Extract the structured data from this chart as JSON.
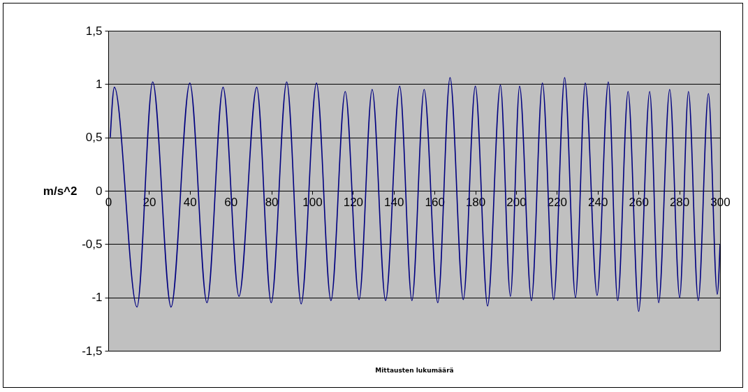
{
  "chart_data": {
    "type": "line",
    "xlabel": "Mittausten lukumäärä",
    "ylabel": "m/s^2",
    "x": [
      1,
      3,
      14.1,
      21.8,
      30.8,
      40,
      48.4,
      56.3,
      64.1,
      72.8,
      79.9,
      87.5,
      94.6,
      102.1,
      109.2,
      116.2,
      123,
      129.4,
      136,
      142.9,
      148.9,
      154.9,
      161.6,
      167.6,
      174.1,
      180,
      186,
      192.3,
      197.2,
      201.7,
      207.5,
      212.9,
      218.4,
      223.8,
      229.1,
      233.9,
      239.7,
      245.2,
      249.8,
      254.9,
      260.1,
      265.5,
      269.9,
      275.3,
      280.2,
      284.5,
      289.3,
      294.3,
      298.6,
      300
    ],
    "series": [
      {
        "color": "#000080",
        "values": [
          0.5,
          0.97,
          -1.09,
          1.02,
          -1.09,
          1.01,
          -1.05,
          0.97,
          -0.99,
          0.97,
          -1.05,
          1.02,
          -1.06,
          1.01,
          -1.03,
          0.93,
          -1.02,
          0.95,
          -1.03,
          0.98,
          -1.03,
          0.95,
          -1.05,
          1.06,
          -1.02,
          0.98,
          -1.08,
          0.99,
          -0.99,
          0.98,
          -1.03,
          1.01,
          -1.02,
          1.06,
          -1.0,
          1.01,
          -0.98,
          1.02,
          -1.03,
          0.93,
          -1.13,
          0.93,
          -1.05,
          0.95,
          -1.0,
          0.93,
          -1.03,
          0.91,
          -0.97,
          -0.5
        ]
      }
    ],
    "xlim": [
      0,
      300
    ],
    "xticks": [
      0,
      20,
      40,
      60,
      80,
      100,
      120,
      140,
      160,
      180,
      200,
      220,
      240,
      260,
      280,
      300
    ],
    "ylim": [
      -1.5,
      1.5
    ],
    "yticks": [
      {
        "value": -1.5,
        "label": "-1,5"
      },
      {
        "value": -1,
        "label": "-1"
      },
      {
        "value": -0.5,
        "label": "-0,5"
      },
      {
        "value": 0,
        "label": "0"
      },
      {
        "value": 0.5,
        "label": "0,5"
      },
      {
        "value": 1,
        "label": "1"
      },
      {
        "value": 1.5,
        "label": "1,5"
      }
    ],
    "grid": "y",
    "marker": "none",
    "line_style": "solid"
  }
}
